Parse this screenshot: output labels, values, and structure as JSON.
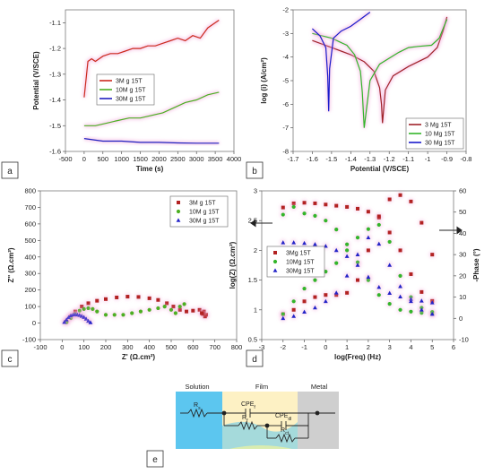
{
  "chart_data": [
    {
      "panel": "a",
      "type": "line",
      "xlabel": "Time (s)",
      "ylabel": "Potential (V/SCE)",
      "xlim": [
        -500,
        4000
      ],
      "ylim": [
        -1.6,
        -1.05
      ],
      "xticks": [
        -500,
        0,
        500,
        1000,
        1500,
        2000,
        2500,
        3000,
        3500,
        4000
      ],
      "yticks": [
        -1.6,
        -1.5,
        -1.4,
        -1.3,
        -1.2,
        -1.1
      ],
      "legend_position": "center",
      "series": [
        {
          "name": "3M g 15T",
          "color": "#cc2a1e",
          "x": [
            0,
            100,
            200,
            300,
            500,
            700,
            900,
            1100,
            1300,
            1500,
            1700,
            1900,
            2100,
            2300,
            2500,
            2700,
            2900,
            3100,
            3300,
            3500,
            3600
          ],
          "y": [
            -1.39,
            -1.25,
            -1.24,
            -1.25,
            -1.23,
            -1.22,
            -1.22,
            -1.21,
            -1.2,
            -1.2,
            -1.19,
            -1.19,
            -1.18,
            -1.17,
            -1.16,
            -1.17,
            -1.15,
            -1.16,
            -1.12,
            -1.1,
            -1.09
          ]
        },
        {
          "name": "10M g 15T",
          "color": "#4caf22",
          "x": [
            0,
            300,
            600,
            900,
            1200,
            1500,
            1800,
            2100,
            2400,
            2700,
            3000,
            3300,
            3600
          ],
          "y": [
            -1.5,
            -1.5,
            -1.49,
            -1.48,
            -1.47,
            -1.47,
            -1.46,
            -1.45,
            -1.43,
            -1.41,
            -1.4,
            -1.38,
            -1.37
          ]
        },
        {
          "name": "30M g 15T",
          "color": "#1f1fbf",
          "x": [
            0,
            500,
            1000,
            1500,
            2000,
            2500,
            3000,
            3600
          ],
          "y": [
            -1.55,
            -1.56,
            -1.56,
            -1.565,
            -1.565,
            -1.567,
            -1.568,
            -1.568
          ]
        }
      ]
    },
    {
      "panel": "b",
      "type": "line",
      "xlabel": "Potential (V/SCE)",
      "ylabel": "log (i) (A/cm²)",
      "xlim": [
        -1.7,
        -0.8
      ],
      "ylim": [
        -8,
        -2
      ],
      "xticks": [
        -1.7,
        -1.6,
        -1.5,
        -1.4,
        -1.3,
        -1.2,
        -1.1,
        -1.0,
        -0.9,
        -0.8
      ],
      "xtick_labels": [
        "-1.7",
        "-1.6",
        "-1.5",
        "-1.4",
        "-1.3",
        "-1.2",
        "-1.1",
        "-1",
        "-0.9",
        "-0.8"
      ],
      "yticks": [
        -8,
        -7,
        -6,
        -5,
        -4,
        -3,
        -2
      ],
      "legend_position": "bottom-right",
      "series": [
        {
          "name": "3 Mg 15T",
          "color": "#a0232a",
          "x": [
            -1.6,
            -1.5,
            -1.4,
            -1.33,
            -1.28,
            -1.25,
            -1.24,
            -1.235,
            -1.22,
            -1.18,
            -1.1,
            -1.0,
            -0.95,
            -0.92,
            -0.9
          ],
          "y": [
            -3.3,
            -3.6,
            -3.9,
            -4.2,
            -4.6,
            -5.3,
            -6.0,
            -6.8,
            -5.4,
            -4.8,
            -4.4,
            -4.0,
            -3.6,
            -2.9,
            -2.3
          ]
        },
        {
          "name": "10 Mg 15T",
          "color": "#33b52a",
          "x": [
            -1.6,
            -1.5,
            -1.42,
            -1.38,
            -1.35,
            -1.34,
            -1.33,
            -1.3,
            -1.25,
            -1.15,
            -1.1,
            -1.05,
            -0.98,
            -0.94,
            -0.92,
            -0.9
          ],
          "y": [
            -3.0,
            -3.2,
            -3.5,
            -3.9,
            -4.6,
            -5.5,
            -7.0,
            -5.0,
            -4.3,
            -3.8,
            -3.6,
            -3.55,
            -3.5,
            -3.2,
            -2.8,
            -2.4
          ]
        },
        {
          "name": "30 Mg 15T",
          "color": "#1a1acc",
          "x": [
            -1.6,
            -1.56,
            -1.53,
            -1.52,
            -1.515,
            -1.51,
            -1.49,
            -1.45,
            -1.4,
            -1.35,
            -1.3
          ],
          "y": [
            -2.8,
            -3.1,
            -3.6,
            -4.8,
            -6.3,
            -4.5,
            -3.2,
            -2.9,
            -2.7,
            -2.4,
            -2.1
          ]
        }
      ]
    },
    {
      "panel": "c",
      "type": "scatter",
      "xlabel": "Z' (Ω.cm²)",
      "ylabel": "Z'' (Ω.cm²)",
      "xlim": [
        -100,
        800
      ],
      "ylim": [
        -100,
        800
      ],
      "xticks": [
        -100,
        0,
        100,
        200,
        300,
        400,
        500,
        600,
        700,
        800
      ],
      "yticks": [
        -100,
        0,
        100,
        200,
        300,
        400,
        500,
        600,
        700,
        800
      ],
      "legend_position": "top-right",
      "series": [
        {
          "name": "3M g 15T",
          "color": "#b22222",
          "marker": "square",
          "x": [
            20,
            40,
            60,
            90,
            120,
            160,
            200,
            250,
            300,
            350,
            400,
            440,
            480,
            510,
            540,
            570,
            600,
            630,
            650,
            660,
            655,
            645,
            640
          ],
          "y": [
            10,
            40,
            70,
            100,
            120,
            135,
            145,
            155,
            160,
            158,
            150,
            140,
            120,
            100,
            80,
            70,
            75,
            80,
            70,
            50,
            40,
            55,
            60
          ]
        },
        {
          "name": "10M g 15T",
          "color": "#4caf22",
          "marker": "circle",
          "x": [
            20,
            40,
            60,
            80,
            100,
            120,
            140,
            160,
            200,
            240,
            280,
            320,
            360,
            400,
            440,
            470,
            500,
            520,
            540,
            560
          ],
          "y": [
            5,
            30,
            55,
            75,
            85,
            90,
            85,
            70,
            50,
            50,
            50,
            60,
            70,
            80,
            90,
            100,
            80,
            60,
            100,
            115
          ]
        },
        {
          "name": "30M g 15T",
          "color": "#2323c8",
          "marker": "triangle",
          "x": [
            10,
            20,
            30,
            40,
            50,
            60,
            70,
            80,
            90,
            100,
            110,
            120,
            130
          ],
          "y": [
            5,
            20,
            35,
            45,
            50,
            52,
            50,
            47,
            42,
            35,
            25,
            12,
            3
          ]
        }
      ]
    },
    {
      "panel": "d",
      "type": "scatter",
      "xlabel": "log(Freq) (Hz)",
      "ylabel": "log(Z) (Ω.cm²)",
      "ylabel_right": "-Phase (°)",
      "xlim": [
        -3,
        6
      ],
      "ylim": [
        0.5,
        3.0
      ],
      "ylim_right": [
        -10,
        60
      ],
      "xticks": [
        -3,
        -2,
        -1,
        0,
        1,
        2,
        3,
        4,
        5,
        6
      ],
      "yticks": [
        0.5,
        1.0,
        1.5,
        2.0,
        2.5,
        3.0
      ],
      "yticks_right": [
        -10,
        0,
        10,
        20,
        30,
        40,
        50,
        60
      ],
      "legend_position": "center-left",
      "series": [
        {
          "name": "3Mg 15T",
          "color": "#b22222",
          "marker": "square",
          "axis": "left",
          "x": [
            -2,
            -1.5,
            -1,
            -0.5,
            0,
            0.5,
            1,
            1.5,
            2,
            2.5,
            3,
            3.5,
            4,
            4.5,
            5
          ],
          "y": [
            2.72,
            2.79,
            2.8,
            2.79,
            2.77,
            2.75,
            2.73,
            2.7,
            2.65,
            2.55,
            2.3,
            2.0,
            1.6,
            1.3,
            1.15
          ]
        },
        {
          "name": "3Mg 15T",
          "color": "#b22222",
          "marker": "square",
          "axis": "right",
          "x": [
            -2,
            -1.5,
            -1,
            -0.5,
            0,
            0.5,
            1,
            1.5,
            2,
            2.5,
            3,
            3.5,
            4,
            4.5,
            5
          ],
          "y": [
            2,
            4,
            8,
            10,
            11,
            11,
            12,
            18,
            32,
            48,
            56,
            58,
            55,
            45,
            30
          ]
        },
        {
          "name": "10Mg 15T",
          "color": "#33b52a",
          "marker": "circle",
          "axis": "left",
          "x": [
            -2,
            -1.5,
            -1,
            -0.5,
            0,
            0.5,
            1,
            1.5,
            2,
            2.5,
            3,
            3.5,
            4,
            4.5,
            5
          ],
          "y": [
            2.6,
            2.73,
            2.62,
            2.58,
            2.5,
            2.35,
            2.1,
            1.8,
            1.5,
            1.25,
            1.1,
            1.0,
            0.97,
            0.95,
            0.93
          ]
        },
        {
          "name": "10Mg 15T",
          "color": "#33b52a",
          "marker": "circle",
          "axis": "right",
          "x": [
            -2,
            -1.5,
            -1,
            -0.5,
            0,
            0.5,
            1,
            1.5,
            2,
            2.5,
            3,
            3.5,
            4,
            4.5,
            5
          ],
          "y": [
            2,
            8,
            14,
            18,
            22,
            26,
            32,
            38,
            42,
            44,
            36,
            20,
            10,
            5,
            3
          ]
        },
        {
          "name": "30Mg 15T",
          "color": "#2323c8",
          "marker": "triangle",
          "axis": "left",
          "x": [
            -2,
            -1.5,
            -1,
            -0.5,
            0,
            0.5,
            1,
            1.5,
            2,
            2.5,
            3,
            3.5,
            4,
            4.5,
            5
          ],
          "y": [
            2.13,
            2.13,
            2.12,
            2.1,
            2.07,
            2.0,
            1.9,
            1.75,
            1.55,
            1.38,
            1.28,
            1.22,
            1.18,
            1.15,
            1.12
          ]
        },
        {
          "name": "30Mg 15T",
          "color": "#2323c8",
          "marker": "triangle",
          "axis": "right",
          "x": [
            -2,
            -1.5,
            -1,
            -0.5,
            0,
            0.5,
            1,
            1.5,
            2,
            2.5,
            3,
            3.5,
            4,
            4.5,
            5
          ],
          "y": [
            0,
            1,
            3,
            5,
            8,
            12,
            20,
            30,
            38,
            35,
            25,
            15,
            8,
            4,
            2
          ]
        }
      ]
    }
  ],
  "panel_labels": [
    "a",
    "b",
    "c",
    "d",
    "e"
  ],
  "circuit": {
    "regions": [
      "Solution",
      "Film",
      "Metal"
    ],
    "components": [
      {
        "label": "R",
        "sub": "s"
      },
      {
        "label": "CPE",
        "sub": "f"
      },
      {
        "label": "R",
        "sub": "f"
      },
      {
        "label": "CPE",
        "sub": "dl"
      },
      {
        "label": "R",
        "sub": "ct"
      }
    ]
  }
}
